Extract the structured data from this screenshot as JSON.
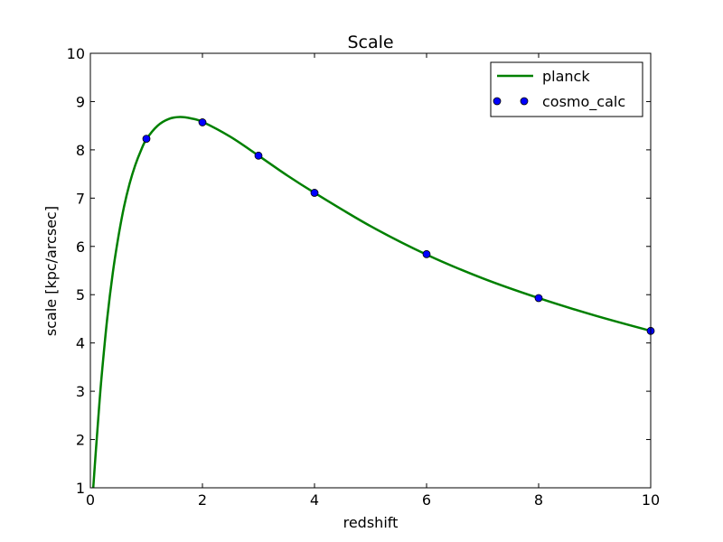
{
  "chart_data": {
    "type": "line",
    "title": "Scale",
    "xlabel": "redshift",
    "ylabel": "scale [kpc/arcsec]",
    "xlim": [
      0,
      10
    ],
    "ylim": [
      1,
      10
    ],
    "xticks": [
      "0",
      "2",
      "4",
      "6",
      "8",
      "10"
    ],
    "yticks": [
      "1",
      "2",
      "3",
      "4",
      "5",
      "6",
      "7",
      "8",
      "9",
      "10"
    ],
    "grid": false,
    "legend_position": "top-right",
    "series": [
      {
        "name": "planck",
        "style": "line",
        "color": "#008000",
        "x": [
          0.05,
          0.1,
          0.15,
          0.2,
          0.3,
          0.4,
          0.5,
          0.6,
          0.7,
          0.8,
          0.9,
          1.0,
          1.2,
          1.4,
          1.6,
          1.8,
          2.0,
          2.5,
          3.0,
          3.5,
          4.0,
          5.0,
          6.0,
          7.0,
          8.0,
          9.0,
          10.0
        ],
        "y": [
          0.98,
          1.8,
          2.58,
          3.3,
          4.5,
          5.45,
          6.2,
          6.82,
          7.3,
          7.68,
          7.98,
          8.22,
          8.5,
          8.64,
          8.68,
          8.65,
          8.58,
          8.27,
          7.88,
          7.48,
          7.11,
          6.42,
          5.83,
          5.34,
          4.93,
          4.57,
          4.25
        ]
      },
      {
        "name": "cosmo_calc",
        "style": "markers",
        "color": "#0000ff",
        "x": [
          1,
          2,
          3,
          4,
          6,
          8,
          10
        ],
        "y": [
          8.23,
          8.57,
          7.88,
          7.11,
          5.84,
          4.93,
          4.25
        ]
      }
    ]
  }
}
